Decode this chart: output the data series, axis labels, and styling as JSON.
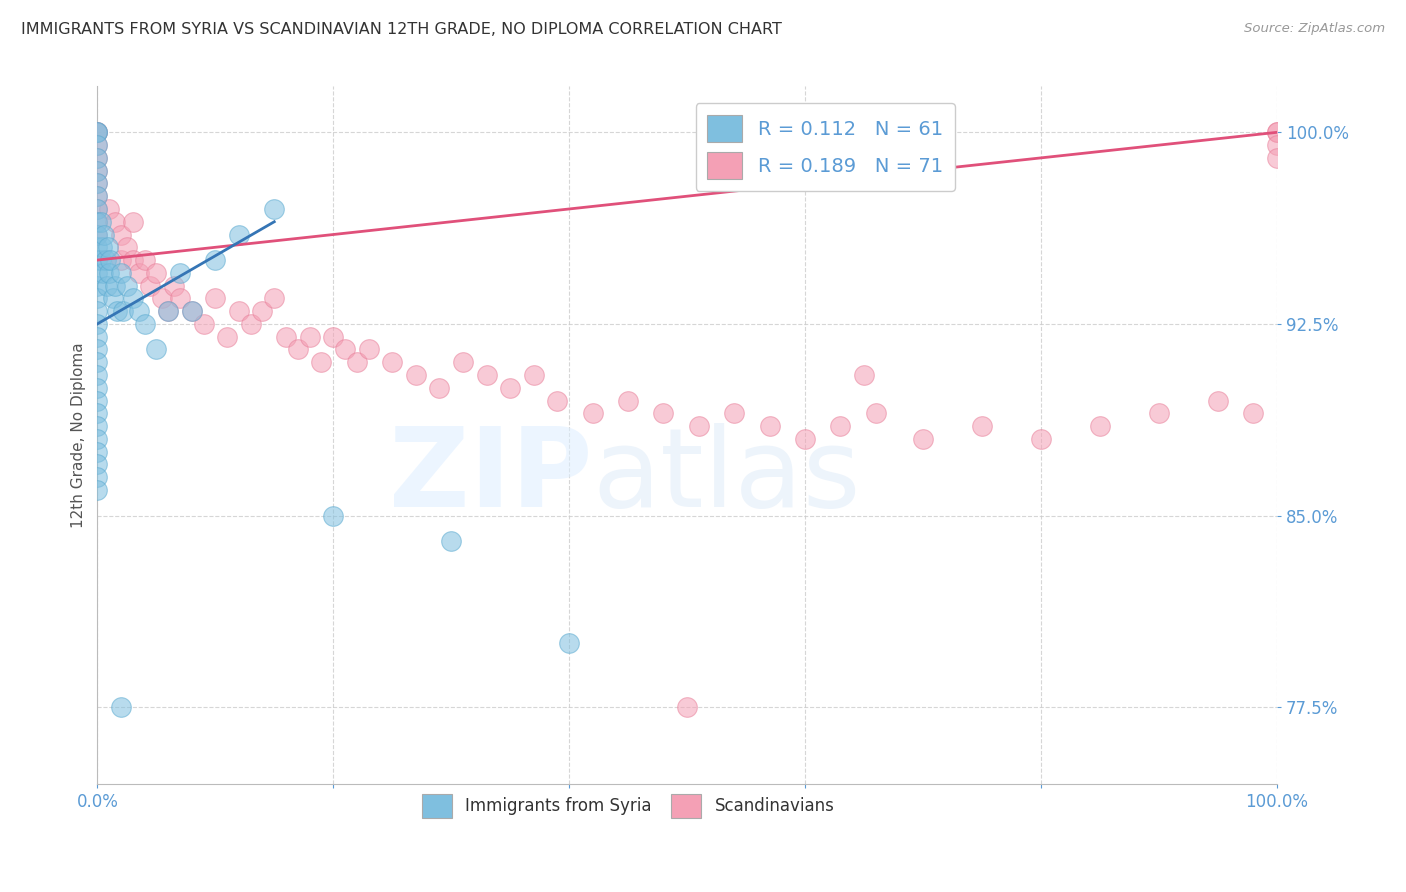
{
  "title": "IMMIGRANTS FROM SYRIA VS SCANDINAVIAN 12TH GRADE, NO DIPLOMA CORRELATION CHART",
  "source": "Source: ZipAtlas.com",
  "ylabel": "12th Grade, No Diploma",
  "xlim": [
    0.0,
    100.0
  ],
  "ylim": [
    74.5,
    101.8
  ],
  "ytick_values": [
    77.5,
    85.0,
    92.5,
    100.0
  ],
  "ytick_labels": [
    "77.5%",
    "85.0%",
    "92.5%",
    "100.0%"
  ],
  "blue_color": "#7fbfdf",
  "blue_edge": "#5aaad0",
  "pink_color": "#f4a0b5",
  "pink_edge": "#e8809a",
  "blue_line_color": "#3575b5",
  "pink_line_color": "#e0507a",
  "watermark_zip": "ZIP",
  "watermark_atlas": "atlas",
  "syria_x": [
    0.0,
    0.0,
    0.0,
    0.0,
    0.0,
    0.0,
    0.0,
    0.0,
    0.0,
    0.0,
    0.0,
    0.0,
    0.0,
    0.0,
    0.0,
    0.0,
    0.0,
    0.0,
    0.0,
    0.0,
    0.0,
    0.0,
    0.0,
    0.0,
    0.0,
    0.0,
    0.0,
    0.0,
    0.0,
    0.0,
    0.3,
    0.3,
    0.4,
    0.5,
    0.6,
    0.7,
    0.8,
    0.9,
    1.0,
    1.1,
    1.3,
    1.5,
    1.7,
    2.0,
    2.2,
    2.5,
    3.0,
    3.5,
    4.0,
    5.0,
    6.0,
    7.0,
    8.0,
    10.0,
    12.0,
    15.0,
    20.0,
    30.0,
    40.0,
    65.0,
    2.0
  ],
  "syria_y": [
    100.0,
    100.0,
    99.5,
    99.0,
    98.5,
    98.0,
    97.5,
    97.0,
    96.5,
    96.0,
    95.5,
    95.0,
    94.5,
    94.0,
    93.5,
    93.0,
    92.5,
    92.0,
    91.5,
    91.0,
    90.5,
    90.0,
    89.5,
    89.0,
    88.5,
    88.0,
    87.5,
    87.0,
    86.5,
    86.0,
    96.5,
    95.0,
    95.5,
    94.5,
    96.0,
    95.0,
    94.0,
    95.5,
    94.5,
    95.0,
    93.5,
    94.0,
    93.0,
    94.5,
    93.0,
    94.0,
    93.5,
    93.0,
    92.5,
    91.5,
    93.0,
    94.5,
    93.0,
    95.0,
    96.0,
    97.0,
    85.0,
    84.0,
    80.0,
    100.0,
    77.5
  ],
  "scand_x": [
    0.0,
    0.0,
    0.0,
    0.0,
    0.0,
    0.0,
    0.0,
    0.0,
    0.0,
    0.0,
    1.0,
    1.5,
    2.0,
    2.0,
    2.5,
    3.0,
    3.0,
    3.5,
    4.0,
    4.5,
    5.0,
    5.5,
    6.0,
    6.5,
    7.0,
    8.0,
    9.0,
    10.0,
    11.0,
    12.0,
    13.0,
    14.0,
    15.0,
    16.0,
    17.0,
    18.0,
    19.0,
    20.0,
    21.0,
    22.0,
    23.0,
    25.0,
    27.0,
    29.0,
    31.0,
    33.0,
    35.0,
    37.0,
    39.0,
    42.0,
    45.0,
    48.0,
    51.0,
    54.0,
    57.0,
    60.0,
    63.0,
    66.0,
    70.0,
    75.0,
    80.0,
    85.0,
    90.0,
    95.0,
    98.0,
    100.0,
    100.0,
    100.0,
    100.0,
    50.0,
    65.0
  ],
  "scand_y": [
    100.0,
    100.0,
    99.5,
    99.0,
    98.5,
    98.0,
    97.5,
    97.0,
    96.5,
    96.0,
    97.0,
    96.5,
    96.0,
    95.0,
    95.5,
    96.5,
    95.0,
    94.5,
    95.0,
    94.0,
    94.5,
    93.5,
    93.0,
    94.0,
    93.5,
    93.0,
    92.5,
    93.5,
    92.0,
    93.0,
    92.5,
    93.0,
    93.5,
    92.0,
    91.5,
    92.0,
    91.0,
    92.0,
    91.5,
    91.0,
    91.5,
    91.0,
    90.5,
    90.0,
    91.0,
    90.5,
    90.0,
    90.5,
    89.5,
    89.0,
    89.5,
    89.0,
    88.5,
    89.0,
    88.5,
    88.0,
    88.5,
    89.0,
    88.0,
    88.5,
    88.0,
    88.5,
    89.0,
    89.5,
    89.0,
    100.0,
    100.0,
    99.5,
    99.0,
    77.5,
    90.5
  ]
}
